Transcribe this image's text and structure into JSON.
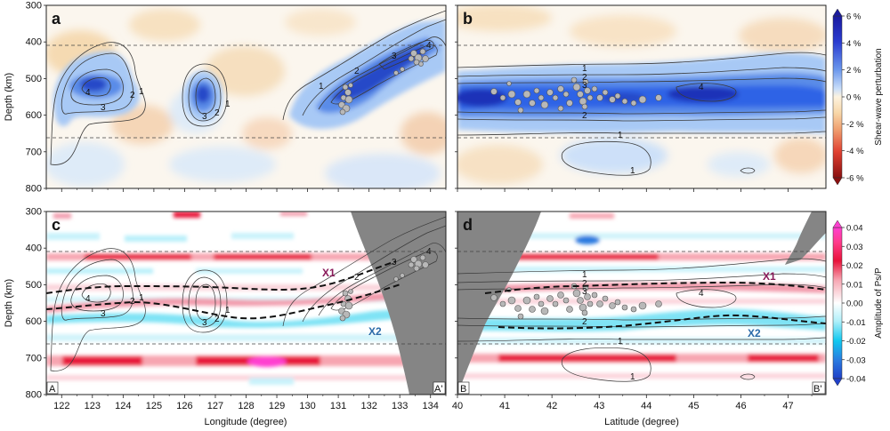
{
  "chart_data": [
    {
      "panel": "a",
      "type": "heatmap",
      "ylabel": "Depth (km)",
      "ylim": [
        300,
        800
      ],
      "yticks": [
        300,
        400,
        500,
        600,
        700,
        800
      ],
      "xlim": [
        121.5,
        134.5
      ],
      "contour_labels": [
        "4",
        "3",
        "2",
        "1",
        "3",
        "2",
        "1",
        "1",
        "2",
        "3",
        "4"
      ],
      "discontinuities_km": [
        410,
        660
      ]
    },
    {
      "panel": "b",
      "type": "heatmap",
      "ylim": [
        300,
        800
      ],
      "xlim": [
        40,
        47.8
      ],
      "contour_labels": [
        "1",
        "2",
        "3",
        "2",
        "1",
        "4",
        "1"
      ],
      "discontinuities_km": [
        410,
        660
      ]
    },
    {
      "panel": "c",
      "type": "heatmap",
      "ylabel": "Depth (km)",
      "xlabel": "Longitude (degree)",
      "xticks": [
        "122",
        "123",
        "124",
        "125",
        "126",
        "127",
        "128",
        "129",
        "130",
        "131",
        "132",
        "133",
        "134"
      ],
      "xlim": [
        121.5,
        134.5
      ],
      "ylim": [
        300,
        800
      ],
      "yticks": [
        300,
        400,
        500,
        600,
        700,
        800
      ],
      "annotations": [
        "X1",
        "X2"
      ],
      "profile_ends": [
        "A",
        "A'"
      ],
      "contour_labels": [
        "4",
        "3",
        "2",
        "1",
        "3",
        "2",
        "1",
        "4",
        "3",
        "2"
      ]
    },
    {
      "panel": "d",
      "type": "heatmap",
      "xlabel": "Latitude (degree)",
      "xticks": [
        "40",
        "41",
        "42",
        "43",
        "44",
        "45",
        "46",
        "47"
      ],
      "xlim": [
        40,
        47.8
      ],
      "ylim": [
        300,
        800
      ],
      "annotations": [
        "X1",
        "X2"
      ],
      "profile_ends": [
        "B",
        "B'"
      ],
      "contour_labels": [
        "1",
        "2",
        "3",
        "2",
        "1",
        "4",
        "1"
      ]
    }
  ],
  "colorbars": [
    {
      "label": "Shear-wave perturbation",
      "ticks": [
        "6 %",
        "4 %",
        "2 %",
        "0 %",
        "-2 %",
        "-4 %",
        "-6 %"
      ],
      "colors": [
        "#1a1aa0",
        "#3a55e0",
        "#8ab4f0",
        "#fdf3e0",
        "#f8cc9a",
        "#e8503a",
        "#8a1010"
      ]
    },
    {
      "label": "Amplitude of Ps/P",
      "ticks": [
        "0.04",
        "0.03",
        "0.02",
        "0.01",
        "0.00",
        "-0.01",
        "-0.02",
        "-0.03",
        "-0.04"
      ],
      "colors": [
        "#ff3fd0",
        "#e8123a",
        "#f59aa8",
        "#ffffff",
        "#8fe6f5",
        "#10c8f0",
        "#2040c8"
      ]
    }
  ],
  "colors": {
    "slab_blue": "#2f63e6",
    "slab_light": "#8bb8f2",
    "warm": "#f6d9b0",
    "red_band": "#e8123a",
    "cyan_band": "#33cfee",
    "land": "#858585",
    "events": "#b8b8b8"
  }
}
